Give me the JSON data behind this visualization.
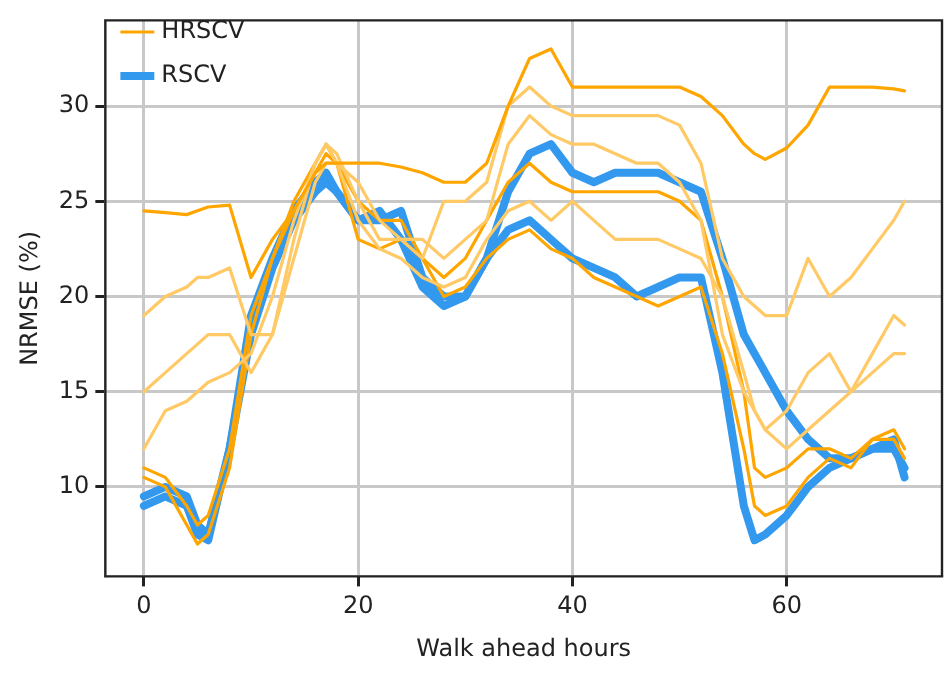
{
  "chart_data": {
    "type": "line",
    "xlabel": "Walk ahead hours",
    "ylabel": "NRMSE (%)",
    "x": [
      0,
      2,
      4,
      5,
      6,
      8,
      10,
      12,
      14,
      16,
      17,
      18,
      20,
      22,
      24,
      26,
      28,
      30,
      32,
      34,
      36,
      38,
      40,
      42,
      44,
      46,
      48,
      50,
      52,
      54,
      56,
      57,
      58,
      60,
      62,
      64,
      66,
      68,
      70,
      71
    ],
    "xlim": [
      -3.6,
      74.5
    ],
    "xticks": [
      0,
      20,
      40,
      60
    ],
    "ylim": [
      5.3,
      34.5
    ],
    "yticks": [
      10,
      15,
      20,
      25,
      30
    ],
    "grid": true,
    "legend": "top left",
    "marker": "none",
    "line_style": "solid",
    "series": [
      {
        "name": "HRSCV",
        "color": "#ffa500",
        "values": [
          24.5,
          24.4,
          24.3,
          24.5,
          24.7,
          24.8,
          21,
          23,
          24.5,
          26.5,
          27,
          27,
          27,
          27,
          26.8,
          26.5,
          26,
          26,
          27,
          30,
          32.5,
          33,
          31,
          31,
          31,
          31,
          31,
          31,
          30.5,
          29.5,
          28,
          27.5,
          27.2,
          27.8,
          29,
          31,
          31,
          31,
          30.9,
          30.8
        ]
      },
      {
        "color": "#ffc966",
        "values": [
          19,
          20,
          20.5,
          21,
          21,
          21.5,
          18,
          18,
          22,
          26,
          27,
          27,
          26,
          24,
          23,
          22,
          25,
          25,
          26,
          30,
          31,
          30,
          29.5,
          29.5,
          29.5,
          29.5,
          29.5,
          29,
          27,
          22,
          20,
          19.5,
          19,
          19,
          22,
          20,
          21,
          22.5,
          24,
          25
        ]
      },
      {
        "color": "#ffc966",
        "values": [
          15,
          16,
          17,
          17.5,
          18,
          18,
          16,
          18,
          23,
          27,
          28,
          27.5,
          25,
          23,
          23,
          23,
          22,
          23,
          24,
          28,
          29.5,
          28.5,
          28,
          28,
          27.5,
          27,
          27,
          26,
          24,
          18,
          15,
          14,
          13,
          14,
          16,
          17,
          15,
          17,
          19,
          18.5
        ]
      },
      {
        "color": "#ffc966",
        "values": [
          12,
          14,
          14.5,
          15,
          15.5,
          16,
          17,
          20,
          24,
          27,
          28,
          27,
          24,
          22.5,
          22,
          21,
          20.5,
          21,
          23,
          24.5,
          25,
          24,
          25,
          24,
          23,
          23,
          23,
          22.5,
          22,
          20,
          16,
          14,
          13,
          12,
          13,
          14,
          15,
          16,
          17,
          17
        ]
      },
      {
        "color": "#ffa500",
        "values": [
          10.5,
          10,
          8,
          7,
          7.5,
          11,
          18,
          22,
          25,
          27,
          28,
          27,
          23,
          22.5,
          23,
          22,
          20,
          20.5,
          22,
          23,
          23.5,
          22.5,
          22,
          21,
          20.5,
          20,
          19.5,
          20,
          20.5,
          17,
          12,
          9,
          8.5,
          9,
          10.5,
          11.5,
          11,
          12.5,
          12.5,
          11.5
        ]
      },
      {
        "color": "#ffa500",
        "values": [
          11,
          10.5,
          9,
          8,
          8.5,
          12,
          19,
          22,
          24.5,
          26.5,
          27.5,
          27,
          25,
          24,
          24,
          22,
          21,
          22,
          24,
          26,
          27,
          26,
          25.5,
          25.5,
          25.5,
          25.5,
          25.5,
          25,
          24,
          20,
          15,
          11,
          10.5,
          11,
          12,
          12,
          11.5,
          12.5,
          13,
          12
        ]
      },
      {
        "name": "RSCV",
        "color": "#3399ee",
        "values": [
          9.5,
          10,
          9.5,
          8,
          7.5,
          12,
          18,
          21.5,
          24,
          25.5,
          26,
          25.5,
          24,
          24,
          24.5,
          21,
          20,
          20,
          22,
          25.5,
          27.5,
          28,
          26.5,
          26,
          26.5,
          26.5,
          26.5,
          26,
          25.5,
          22,
          18,
          17,
          16,
          14,
          12.5,
          11.5,
          11.5,
          12,
          12,
          11
        ]
      },
      {
        "color": "#3399ee",
        "values": [
          9,
          9.5,
          9,
          7.5,
          7.2,
          12,
          19,
          22,
          24.5,
          26,
          26.5,
          25.5,
          24,
          24.5,
          23,
          20.5,
          19.5,
          20,
          22,
          23.5,
          24,
          23,
          22,
          21.5,
          21,
          20,
          20.5,
          21,
          21,
          16,
          9,
          7.2,
          7.5,
          8.5,
          10,
          11,
          11.5,
          12,
          12.5,
          10.5
        ]
      }
    ]
  }
}
